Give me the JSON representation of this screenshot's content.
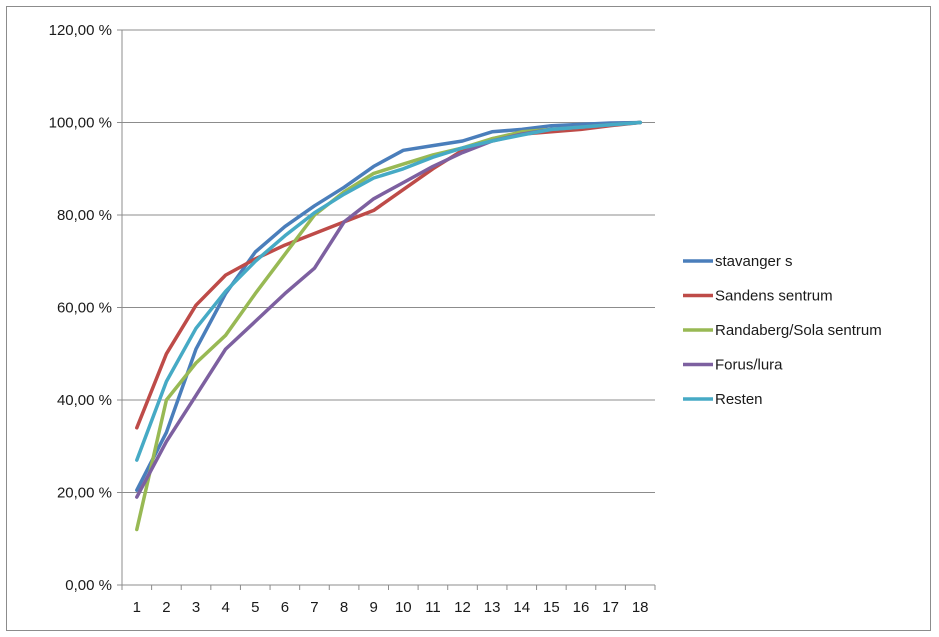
{
  "chart_data": {
    "type": "line",
    "title": "",
    "xlabel": "",
    "ylabel": "",
    "categories": [
      "1",
      "2",
      "3",
      "4",
      "5",
      "6",
      "7",
      "8",
      "9",
      "10",
      "11",
      "12",
      "13",
      "14",
      "15",
      "16",
      "17",
      "18"
    ],
    "ylim": [
      0,
      120
    ],
    "y_ticks": [
      0,
      20,
      40,
      60,
      80,
      100,
      120
    ],
    "y_tick_labels": [
      "0,00 %",
      "20,00 %",
      "40,00 %",
      "60,00 %",
      "80,00 %",
      "100,00 %",
      "120,00 %"
    ],
    "grid": true,
    "legend_position": "right",
    "series": [
      {
        "name": "stavanger s",
        "color": "#4a7ebb",
        "values": [
          20.5,
          33,
          51,
          63,
          72,
          77.5,
          82,
          86,
          90.5,
          94,
          95,
          96,
          98,
          98.5,
          99.3,
          99.6,
          99.9,
          100
        ]
      },
      {
        "name": "Sandens sentrum",
        "color": "#be4b48",
        "values": [
          34,
          50,
          60.5,
          67,
          70.5,
          73.5,
          76,
          78.5,
          81,
          85.5,
          90,
          94,
          96.5,
          97.5,
          98,
          98.5,
          99.3,
          100
        ]
      },
      {
        "name": "Randaberg/Sola sentrum",
        "color": "#98b954",
        "values": [
          12,
          40,
          48,
          54,
          63,
          71.5,
          80,
          85,
          89,
          91,
          93,
          94.5,
          96.5,
          98,
          98.5,
          99,
          99.5,
          100
        ]
      },
      {
        "name": "Forus/lura",
        "color": "#7d60a0",
        "values": [
          19,
          31,
          41,
          51,
          57,
          63,
          68.5,
          78.5,
          83.5,
          87,
          90.5,
          93.5,
          96,
          97.5,
          98.5,
          99,
          99.5,
          100
        ]
      },
      {
        "name": "Resten",
        "color": "#46aac5",
        "values": [
          27,
          44,
          55.5,
          63.5,
          70,
          75.5,
          80.5,
          84.5,
          88,
          90,
          92.5,
          94.5,
          96,
          97.3,
          98.5,
          99,
          99.5,
          100
        ]
      }
    ]
  }
}
